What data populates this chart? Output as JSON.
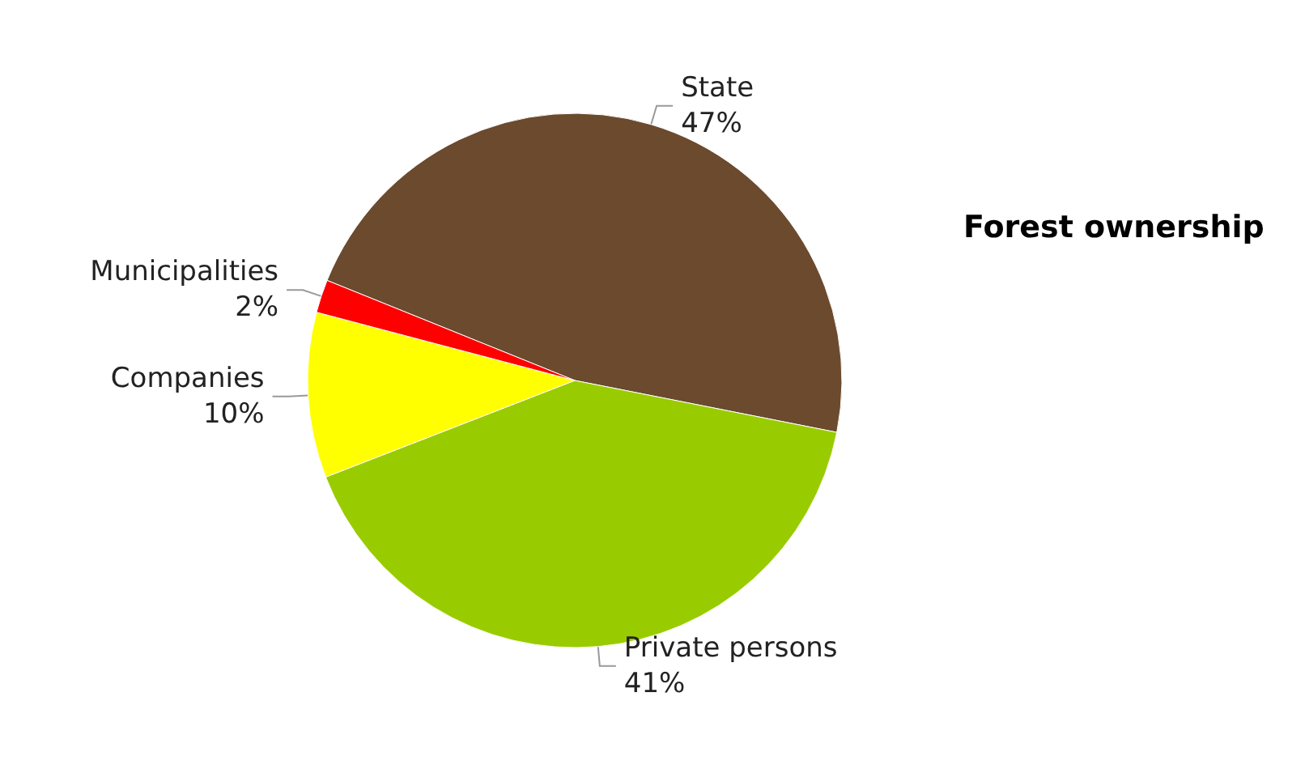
{
  "chart_data": {
    "type": "pie",
    "title": "Forest ownership",
    "categories": [
      "State",
      "Private persons",
      "Companies",
      "Municipalities"
    ],
    "values": [
      47,
      41,
      10,
      2
    ],
    "value_labels": [
      "47%",
      "41%",
      "10%",
      "2%"
    ],
    "colors": [
      "#6b4a2e",
      "#99cc00",
      "#ffff00",
      "#ff0000"
    ],
    "legend": false
  }
}
